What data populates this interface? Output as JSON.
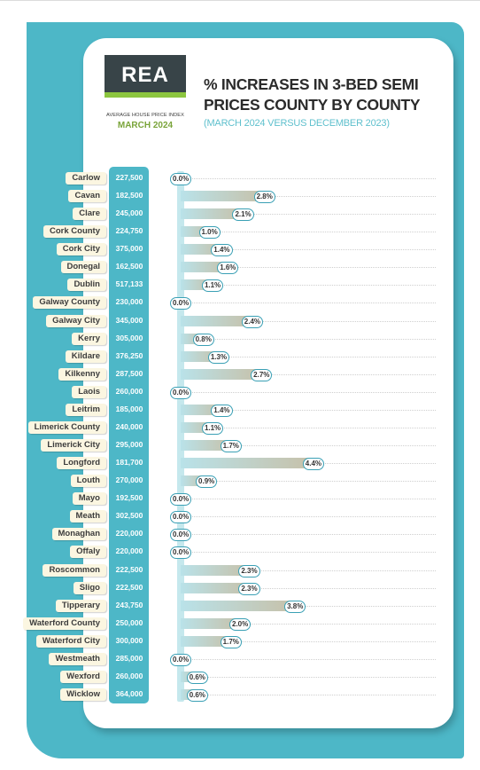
{
  "header": {
    "logo_text": "REA",
    "logo_subtitle": "AVERAGE HOUSE PRICE INDEX",
    "logo_date": "MARCH 2024",
    "title_line1": "% INCREASES IN 3-BED SEMI",
    "title_line2": "PRICES COUNTY BY COUNTY",
    "subtitle": "(MARCH 2024 VERSUS DECEMBER 2023)"
  },
  "colors": {
    "teal": "#4db7c7",
    "logo_bg": "#384448",
    "logo_accent": "#8cc63f",
    "label_bg": "#fbf6e1"
  },
  "chart_data": {
    "type": "bar",
    "orientation": "horizontal",
    "grid": false,
    "categories": [
      "Carlow",
      "Cavan",
      "Clare",
      "Cork County",
      "Cork City",
      "Donegal",
      "Dublin",
      "Galway County",
      "Galway City",
      "Kerry",
      "Kildare",
      "Kilkenny",
      "Laois",
      "Leitrim",
      "Limerick County",
      "Limerick City",
      "Longford",
      "Louth",
      "Mayo",
      "Meath",
      "Monaghan",
      "Offaly",
      "Roscommon",
      "Sligo",
      "Tipperary",
      "Waterford County",
      "Waterford City",
      "Westmeath",
      "Wexford",
      "Wicklow"
    ],
    "prices": [
      "227,500",
      "182,500",
      "245,000",
      "224,750",
      "375,000",
      "162,500",
      "517,133",
      "230,000",
      "345,000",
      "305,000",
      "376,250",
      "287,500",
      "260,000",
      "185,000",
      "240,000",
      "295,000",
      "181,700",
      "270,000",
      "192,500",
      "302,500",
      "220,000",
      "220,000",
      "222,500",
      "222,500",
      "243,750",
      "250,000",
      "300,000",
      "285,000",
      "260,000",
      "364,000"
    ],
    "values": [
      0.0,
      2.8,
      2.1,
      1.0,
      1.4,
      1.6,
      1.1,
      0.0,
      2.4,
      0.8,
      1.3,
      2.7,
      0.0,
      1.4,
      1.1,
      1.7,
      4.4,
      0.9,
      0.0,
      0.0,
      0.0,
      0.0,
      2.3,
      2.3,
      3.8,
      2.0,
      1.7,
      0.0,
      0.6,
      0.6
    ],
    "labels": [
      "0.0%",
      "2.8%",
      "2.1%",
      "1.0%",
      "1.4%",
      "1.6%",
      "1.1%",
      "0.0%",
      "2.4%",
      "0.8%",
      "1.3%",
      "2.7%",
      "0.0%",
      "1.4%",
      "1.1%",
      "1.7%",
      "4.4%",
      "0.9%",
      "0.0%",
      "0.0%",
      "0.0%",
      "0.0%",
      "2.3%",
      "2.3%",
      "3.8%",
      "2.0%",
      "1.7%",
      "0.0%",
      "0.6%",
      "0.6%"
    ],
    "xlim": [
      0,
      4.4
    ]
  }
}
